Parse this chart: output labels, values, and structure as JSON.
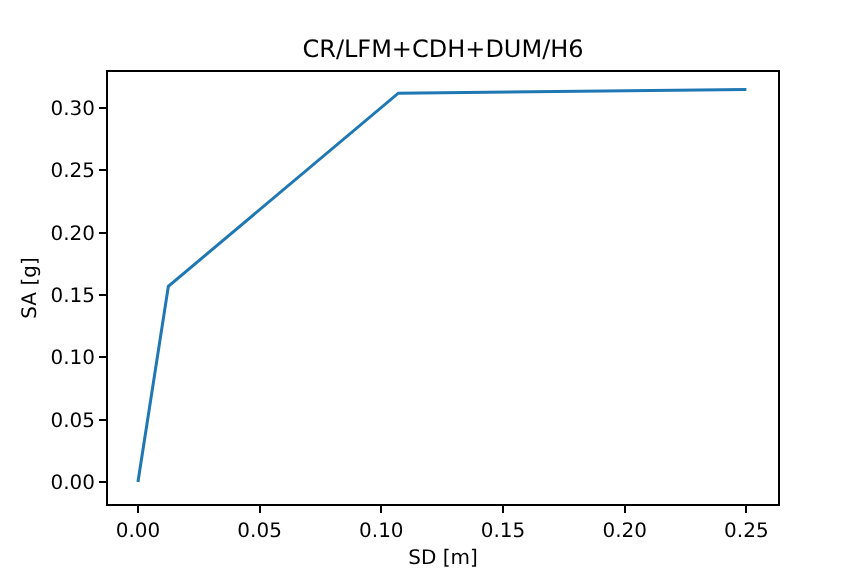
{
  "chart_data": {
    "type": "line",
    "title": "CR/LFM+CDH+DUM/H6",
    "xlabel": "SD [m]",
    "ylabel": "SA [g]",
    "x": [
      0,
      0.0125,
      0.107,
      0.25
    ],
    "series": [
      {
        "color": "#1f77b4",
        "values": [
          0,
          0.157,
          0.312,
          0.315
        ]
      }
    ],
    "xlim": [
      -0.0123,
      0.263
    ],
    "xticks": [
      {
        "value": 0,
        "label": "0.00"
      },
      0.05,
      {
        "value": 0.1,
        "label": "0.10"
      },
      0.15,
      {
        "value": 0.2,
        "label": "0.20"
      },
      0.25
    ],
    "ylim": [
      -0.0177,
      0.329
    ],
    "yticks": [
      {
        "value": 0,
        "label": "0.00"
      },
      0.05,
      {
        "value": 0.1,
        "label": "0.10"
      },
      0.15,
      {
        "value": 0.2,
        "label": "0.20"
      },
      0.25,
      {
        "value": 0.3,
        "label": "0.30"
      }
    ],
    "grid": false,
    "legend": false,
    "marker": "none",
    "line_style": "solid"
  }
}
